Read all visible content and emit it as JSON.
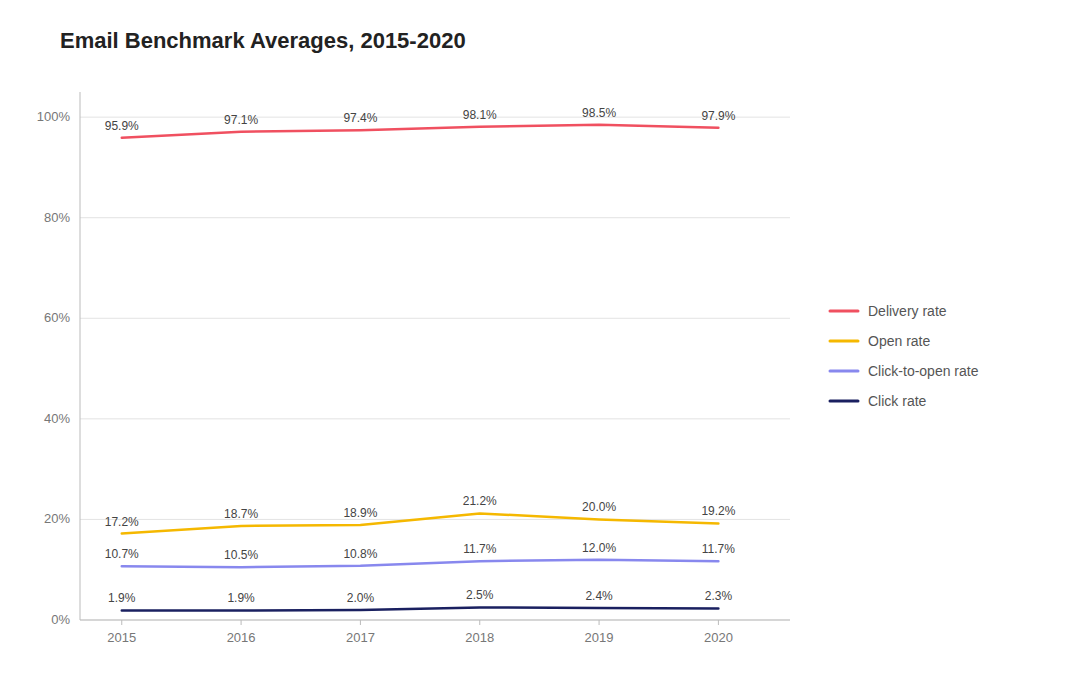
{
  "chart_data": {
    "type": "line",
    "title": "Email Benchmark Averages, 2015-2020",
    "x": [
      2015,
      2016,
      2017,
      2018,
      2019,
      2020
    ],
    "xlim": [
      2014.65,
      2020.6
    ],
    "xticks": [
      2015,
      2016,
      2017,
      2018,
      2019,
      2020
    ],
    "ylim": [
      0,
      105
    ],
    "yticks": [
      {
        "value": 0,
        "label": "0%"
      },
      {
        "value": 20,
        "label": "20%"
      },
      {
        "value": 40,
        "label": "40%"
      },
      {
        "value": 60,
        "label": "60%"
      },
      {
        "value": 80,
        "label": "80%"
      },
      {
        "value": 100,
        "label": "100%"
      }
    ],
    "grid": true,
    "legend": "right",
    "data_labels": true,
    "series": [
      {
        "name": "Delivery rate",
        "color": "#f05060",
        "values": [
          95.9,
          97.1,
          97.4,
          98.1,
          98.5,
          97.9
        ],
        "value_labels": [
          "95.9%",
          "97.1%",
          "97.4%",
          "98.1%",
          "98.5%",
          "97.9%"
        ]
      },
      {
        "name": "Open rate",
        "color": "#f5b800",
        "values": [
          17.2,
          18.7,
          18.9,
          21.2,
          20.0,
          19.2
        ],
        "value_labels": [
          "17.2%",
          "18.7%",
          "18.9%",
          "21.2%",
          "20.0%",
          "19.2%"
        ]
      },
      {
        "name": "Click-to-open rate",
        "color": "#8888ee",
        "values": [
          10.7,
          10.5,
          10.8,
          11.7,
          12.0,
          11.7
        ],
        "value_labels": [
          "10.7%",
          "10.5%",
          "10.8%",
          "11.7%",
          "12.0%",
          "11.7%"
        ]
      },
      {
        "name": "Click rate",
        "color": "#1a2060",
        "values": [
          1.9,
          1.9,
          2.0,
          2.5,
          2.4,
          2.3
        ],
        "value_labels": [
          "1.9%",
          "1.9%",
          "2.0%",
          "2.5%",
          "2.4%",
          "2.3%"
        ]
      }
    ]
  }
}
